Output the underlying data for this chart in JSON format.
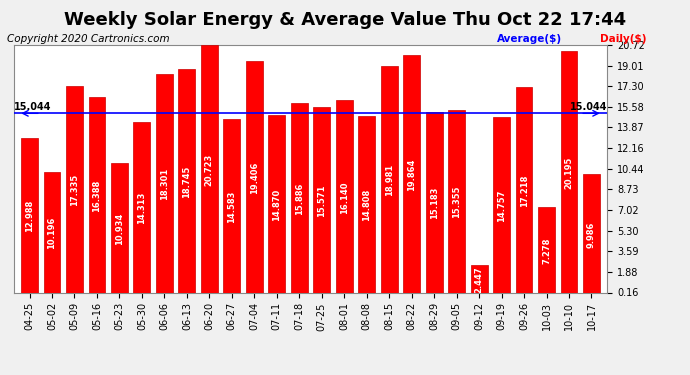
{
  "title": "Weekly Solar Energy & Average Value Thu Oct 22 17:44",
  "copyright": "Copyright 2020 Cartronics.com",
  "legend_average": "Average($)",
  "legend_daily": "Daily($)",
  "average_line": 15.044,
  "average_label": "15.044",
  "bar_color": "#ff0000",
  "bar_edge_color": "#cc0000",
  "background_color": "#f0f0f0",
  "plot_bg_color": "#ffffff",
  "grid_color": "#ffffff",
  "categories": [
    "04-25",
    "05-02",
    "05-09",
    "05-16",
    "05-23",
    "05-30",
    "06-06",
    "06-13",
    "06-20",
    "06-27",
    "07-04",
    "07-11",
    "07-18",
    "07-25",
    "08-01",
    "08-08",
    "08-15",
    "08-22",
    "08-29",
    "09-05",
    "09-12",
    "09-19",
    "09-26",
    "10-03",
    "10-10",
    "10-17"
  ],
  "values": [
    12.988,
    10.196,
    17.335,
    16.388,
    10.934,
    14.313,
    18.301,
    18.745,
    20.723,
    14.583,
    19.406,
    14.87,
    15.886,
    15.571,
    16.14,
    14.808,
    18.981,
    19.864,
    15.183,
    15.355,
    2.447,
    14.757,
    17.218,
    7.278,
    20.195,
    9.986
  ],
  "yticks": [
    0.16,
    1.88,
    3.59,
    5.3,
    7.02,
    8.73,
    10.44,
    12.16,
    13.87,
    15.58,
    17.3,
    19.01,
    20.72
  ],
  "ylim": [
    0.16,
    20.72
  ],
  "title_fontsize": 13,
  "copyright_fontsize": 7.5,
  "tick_fontsize": 7,
  "bar_label_fontsize": 6,
  "avg_line_color": "#0000ff",
  "avg_label_color": "#000000",
  "avg_text_color": "#0000ff",
  "daily_text_color": "#ff0000"
}
